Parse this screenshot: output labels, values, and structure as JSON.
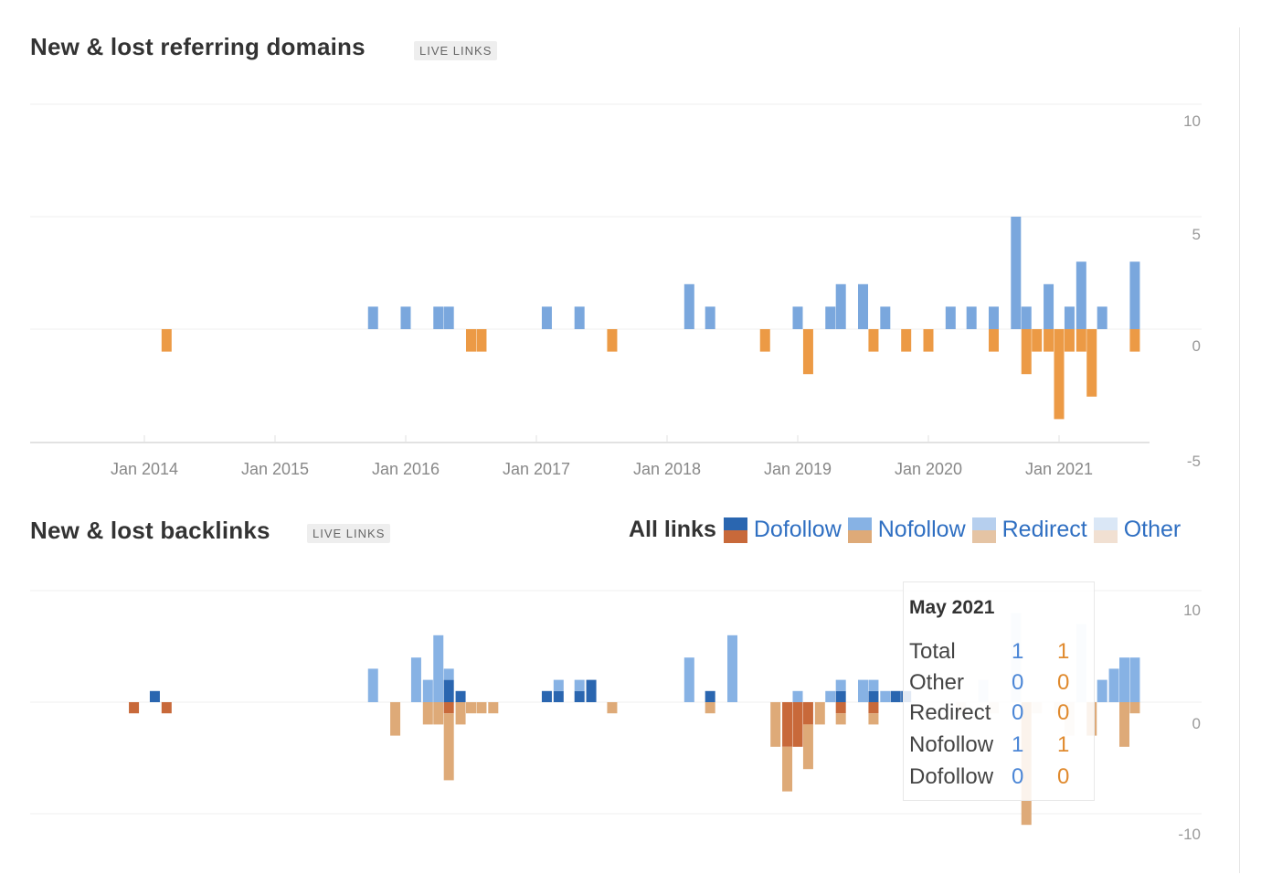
{
  "header1": {
    "title": "New & lost referring domains",
    "tag": "LIVE LINKS"
  },
  "header2": {
    "title": "New & lost backlinks",
    "tag": "LIVE LINKS"
  },
  "legend": {
    "all": "All links",
    "items": [
      "Dofollow",
      "Nofollow",
      "Redirect",
      "Other"
    ]
  },
  "colors": {
    "new_domains": "#7aa7dd",
    "lost_domains": "#ec9a45",
    "dofollow_new": "#2a66b0",
    "dofollow_lost": "#c8693a",
    "nofollow_new": "#87b2e4",
    "nofollow_lost": "#deaa78",
    "redirect_new": "#b6cfee",
    "redirect_lost": "#e5c4a4",
    "other_new": "#dae7f6",
    "other_lost": "#f1e0d2"
  },
  "tooltip": {
    "title": "May 2021",
    "rows": [
      {
        "label": "Total",
        "new": "1",
        "lost": "1"
      },
      {
        "label": "Other",
        "new": "0",
        "lost": "0"
      },
      {
        "label": "Redirect",
        "new": "0",
        "lost": "0"
      },
      {
        "label": "Nofollow",
        "new": "1",
        "lost": "1"
      },
      {
        "label": "Dofollow",
        "new": "0",
        "lost": "0"
      }
    ]
  },
  "chart_data": [
    {
      "type": "bar",
      "title": "New & lost referring domains",
      "y_ticks": [
        "10",
        "5",
        "0",
        "-5"
      ],
      "ylim": [
        -5,
        10
      ],
      "x_ticks": [
        "Jan 2014",
        "Jan 2015",
        "Jan 2016",
        "Jan 2017",
        "Jan 2018",
        "Jan 2019",
        "Jan 2020",
        "Jan 2021"
      ],
      "x_range": [
        2013.0,
        2021.85
      ],
      "grid": true,
      "series": [
        {
          "key": "new",
          "values": [
            [
              2015.75,
              1
            ],
            [
              2016.0,
              1
            ],
            [
              2016.25,
              1
            ],
            [
              2016.33,
              1
            ],
            [
              2017.08,
              1
            ],
            [
              2017.33,
              1
            ],
            [
              2018.17,
              2
            ],
            [
              2018.33,
              1
            ],
            [
              2019.0,
              1
            ],
            [
              2019.25,
              1
            ],
            [
              2019.33,
              2
            ],
            [
              2019.5,
              2
            ],
            [
              2019.67,
              1
            ],
            [
              2020.17,
              1
            ],
            [
              2020.33,
              1
            ],
            [
              2020.5,
              1
            ],
            [
              2020.67,
              5
            ],
            [
              2020.75,
              1
            ],
            [
              2020.92,
              2
            ],
            [
              2021.08,
              1
            ],
            [
              2021.17,
              3
            ],
            [
              2021.33,
              1
            ],
            [
              2021.58,
              3
            ]
          ]
        },
        {
          "key": "lost",
          "values": [
            [
              2014.17,
              -1
            ],
            [
              2016.5,
              -1
            ],
            [
              2016.58,
              -1
            ],
            [
              2017.58,
              -1
            ],
            [
              2018.75,
              -1
            ],
            [
              2019.08,
              -2
            ],
            [
              2019.58,
              -1
            ],
            [
              2019.83,
              -1
            ],
            [
              2020.0,
              -1
            ],
            [
              2020.5,
              -1
            ],
            [
              2020.75,
              -2
            ],
            [
              2020.83,
              -1
            ],
            [
              2020.92,
              -1
            ],
            [
              2021.0,
              -4
            ],
            [
              2021.08,
              -1
            ],
            [
              2021.17,
              -1
            ],
            [
              2021.25,
              -3
            ],
            [
              2021.58,
              -1
            ]
          ]
        }
      ]
    },
    {
      "type": "bar",
      "title": "New & lost backlinks",
      "y_ticks": [
        "10",
        "0",
        "-10"
      ],
      "ylim": [
        -10,
        10
      ],
      "x_range": [
        2013.0,
        2021.85
      ],
      "grid": true,
      "series": [
        {
          "key": "dofollow_new",
          "values": [
            [
              2014.08,
              1
            ],
            [
              2016.33,
              2
            ],
            [
              2016.42,
              1
            ],
            [
              2017.08,
              1
            ],
            [
              2017.17,
              1
            ],
            [
              2017.33,
              1
            ],
            [
              2017.42,
              2
            ],
            [
              2018.33,
              1
            ],
            [
              2019.33,
              1
            ],
            [
              2019.58,
              1
            ],
            [
              2019.75,
              1
            ],
            [
              2019.83,
              1
            ]
          ]
        },
        {
          "key": "nofollow_new",
          "values": [
            [
              2015.75,
              3
            ],
            [
              2016.08,
              4
            ],
            [
              2016.17,
              2
            ],
            [
              2016.25,
              6
            ],
            [
              2016.33,
              1
            ],
            [
              2017.17,
              1
            ],
            [
              2017.33,
              1
            ],
            [
              2018.17,
              4
            ],
            [
              2018.5,
              6
            ],
            [
              2019.0,
              1
            ],
            [
              2019.25,
              1
            ],
            [
              2019.33,
              1
            ],
            [
              2019.5,
              2
            ],
            [
              2019.58,
              1
            ],
            [
              2019.67,
              1
            ],
            [
              2021.33,
              2
            ],
            [
              2021.42,
              3
            ],
            [
              2021.5,
              4
            ],
            [
              2021.58,
              4
            ]
          ]
        },
        {
          "key": "other_new",
          "values": [
            [
              2020.42,
              2
            ],
            [
              2020.67,
              8
            ],
            [
              2021.17,
              7
            ]
          ]
        },
        {
          "key": "dofollow_lost",
          "values": [
            [
              2013.92,
              -1
            ],
            [
              2014.17,
              -1
            ],
            [
              2016.33,
              -1
            ],
            [
              2018.92,
              -4
            ],
            [
              2019.0,
              -4
            ],
            [
              2019.08,
              -2
            ],
            [
              2019.33,
              -1
            ],
            [
              2019.58,
              -1
            ]
          ]
        },
        {
          "key": "nofollow_lost",
          "values": [
            [
              2015.92,
              -3
            ],
            [
              2016.17,
              -2
            ],
            [
              2016.25,
              -2
            ],
            [
              2016.33,
              -6
            ],
            [
              2016.42,
              -2
            ],
            [
              2016.5,
              -1
            ],
            [
              2016.58,
              -1
            ],
            [
              2016.67,
              -1
            ],
            [
              2017.58,
              -1
            ],
            [
              2018.33,
              -1
            ],
            [
              2018.83,
              -4
            ],
            [
              2018.92,
              -4
            ],
            [
              2019.08,
              -4
            ],
            [
              2019.17,
              -2
            ],
            [
              2019.33,
              -1
            ],
            [
              2019.58,
              -1
            ],
            [
              2020.75,
              -11
            ],
            [
              2021.25,
              -3
            ],
            [
              2021.5,
              -4
            ],
            [
              2021.58,
              -1
            ]
          ]
        },
        {
          "key": "other_lost",
          "values": [
            [
              2020.25,
              -1
            ],
            [
              2020.5,
              -1
            ],
            [
              2020.83,
              -1
            ],
            [
              2021.0,
              -1
            ],
            [
              2021.08,
              -3
            ]
          ]
        }
      ]
    }
  ]
}
